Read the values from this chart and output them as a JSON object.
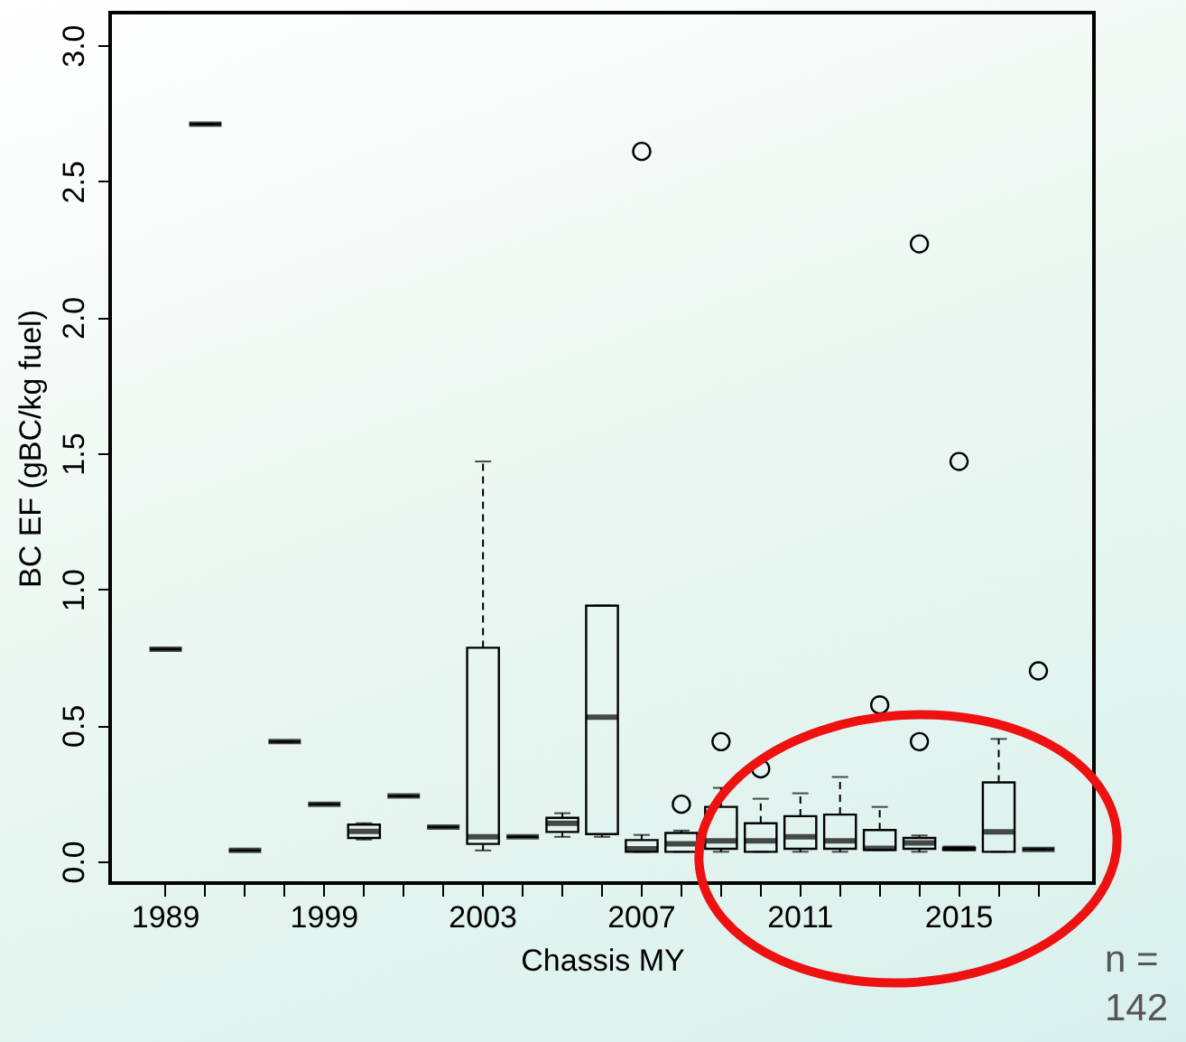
{
  "chart_data": {
    "type": "box",
    "xlabel": "Chassis MY",
    "ylabel": "BC EF (gBC/kg fuel)",
    "categories": [
      "1989",
      null,
      null,
      null,
      "1999",
      null,
      null,
      null,
      "2003",
      null,
      null,
      null,
      "2007",
      null,
      null,
      null,
      "2011",
      null,
      null,
      null,
      "2015",
      null,
      null
    ],
    "ylim": [
      -0.08,
      3.12
    ],
    "yticks": [
      {
        "value": 0,
        "label": "0.0"
      },
      {
        "value": 0.5,
        "label": "0.5"
      },
      {
        "value": 1,
        "label": "1.0"
      },
      {
        "value": 1.5,
        "label": "1.5"
      },
      {
        "value": 2,
        "label": "2.0"
      },
      {
        "value": 2.5,
        "label": "2.5"
      },
      {
        "value": 3,
        "label": "3.0"
      }
    ],
    "boxes": [
      {
        "low": 0.78,
        "q1": 0.78,
        "median": 0.78,
        "q3": 0.78,
        "high": 0.78
      },
      {
        "low": 2.71,
        "q1": 2.71,
        "median": 2.71,
        "q3": 2.71,
        "high": 2.71
      },
      {
        "low": 0.04,
        "q1": 0.04,
        "median": 0.04,
        "q3": 0.04,
        "high": 0.04
      },
      {
        "low": 0.44,
        "q1": 0.44,
        "median": 0.44,
        "q3": 0.44,
        "high": 0.44
      },
      {
        "low": 0.21,
        "q1": 0.21,
        "median": 0.21,
        "q3": 0.21,
        "high": 0.21
      },
      {
        "low": 0.08,
        "q1": 0.086,
        "median": 0.11,
        "q3": 0.135,
        "high": 0.14
      },
      {
        "low": 0.24,
        "q1": 0.24,
        "median": 0.24,
        "q3": 0.24,
        "high": 0.24
      },
      {
        "low": 0.126,
        "q1": 0.126,
        "median": 0.126,
        "q3": 0.126,
        "high": 0.126
      },
      {
        "low": 0.04,
        "q1": 0.064,
        "median": 0.09,
        "q3": 0.785,
        "high": 1.47
      },
      {
        "low": 0.09,
        "q1": 0.09,
        "median": 0.09,
        "q3": 0.09,
        "high": 0.09
      },
      {
        "low": 0.09,
        "q1": 0.108,
        "median": 0.14,
        "q3": 0.16,
        "high": 0.177
      },
      {
        "low": 0.09,
        "q1": 0.1,
        "median": 0.53,
        "q3": 0.94,
        "high": 0.94
      },
      {
        "low": 0.035,
        "q1": 0.035,
        "median": 0.046,
        "q3": 0.078,
        "high": 0.097,
        "outliers": [
          2.61
        ]
      },
      {
        "low": 0.035,
        "q1": 0.035,
        "median": 0.064,
        "q3": 0.104,
        "high": 0.113,
        "outliers": [
          0.21
        ]
      },
      {
        "low": 0.035,
        "q1": 0.046,
        "median": 0.075,
        "q3": 0.2,
        "high": 0.27,
        "outliers": [
          0.44
        ]
      },
      {
        "low": 0.035,
        "q1": 0.035,
        "median": 0.075,
        "q3": 0.14,
        "high": 0.23,
        "outliers": [
          0.34
        ]
      },
      {
        "low": 0.035,
        "q1": 0.046,
        "median": 0.09,
        "q3": 0.166,
        "high": 0.25
      },
      {
        "low": 0.035,
        "q1": 0.046,
        "median": 0.075,
        "q3": 0.172,
        "high": 0.31
      },
      {
        "low": 0.042,
        "q1": 0.042,
        "median": 0.048,
        "q3": 0.115,
        "high": 0.2,
        "outliers": [
          0.575
        ]
      },
      {
        "low": 0.035,
        "q1": 0.046,
        "median": 0.068,
        "q3": 0.086,
        "high": 0.095,
        "outliers": [
          0.44,
          2.27
        ]
      },
      {
        "low": 0.042,
        "q1": 0.042,
        "median": 0.048,
        "q3": 0.05,
        "high": 0.05,
        "outliers": [
          1.47
        ]
      },
      {
        "low": 0.035,
        "q1": 0.035,
        "median": 0.108,
        "q3": 0.29,
        "high": 0.45
      },
      {
        "low": 0.044,
        "q1": 0.044,
        "median": 0.044,
        "q3": 0.044,
        "high": 0.044,
        "outliers": [
          0.7
        ]
      }
    ],
    "annotations": [
      "n = 142"
    ]
  }
}
